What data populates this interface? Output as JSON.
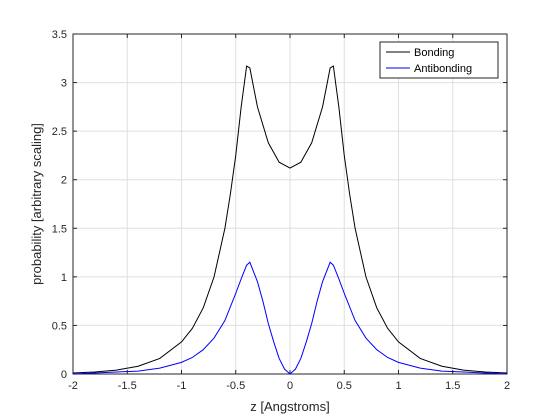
{
  "chart_data": {
    "type": "line",
    "title": "",
    "xlabel": "z [Angstroms]",
    "ylabel": "probability [arbitrary scaling]",
    "xlim": [
      -2,
      2
    ],
    "ylim": [
      0,
      3.5
    ],
    "xticks": [
      -2,
      -1.5,
      -1,
      -0.5,
      0,
      0.5,
      1,
      1.5,
      2
    ],
    "xtick_labels": [
      "-2",
      "-1.5",
      "-1",
      "-0.5",
      "0",
      "0.5",
      "1",
      "1.5",
      "2"
    ],
    "yticks": [
      0,
      0.5,
      1,
      1.5,
      2,
      2.5,
      3,
      3.5
    ],
    "ytick_labels": [
      "0",
      "0.5",
      "1",
      "1.5",
      "2",
      "2.5",
      "3",
      "3.5"
    ],
    "grid": true,
    "legend_position": "top-right",
    "series": [
      {
        "name": "Bonding",
        "color": "#000000",
        "x": [
          -2,
          -1.8,
          -1.6,
          -1.4,
          -1.2,
          -1.0,
          -0.9,
          -0.8,
          -0.7,
          -0.6,
          -0.55,
          -0.5,
          -0.45,
          -0.42,
          -0.4,
          -0.37,
          -0.3,
          -0.2,
          -0.1,
          0,
          0.1,
          0.2,
          0.3,
          0.37,
          0.4,
          0.42,
          0.45,
          0.5,
          0.55,
          0.6,
          0.7,
          0.8,
          0.9,
          1.0,
          1.2,
          1.4,
          1.6,
          1.8,
          2
        ],
        "y": [
          0.01,
          0.02,
          0.04,
          0.08,
          0.16,
          0.33,
          0.47,
          0.68,
          1.0,
          1.5,
          1.85,
          2.25,
          2.75,
          3.0,
          3.17,
          3.15,
          2.75,
          2.38,
          2.18,
          2.12,
          2.18,
          2.38,
          2.75,
          3.15,
          3.17,
          3.0,
          2.75,
          2.25,
          1.85,
          1.5,
          1.0,
          0.68,
          0.47,
          0.33,
          0.16,
          0.08,
          0.04,
          0.02,
          0.01
        ]
      },
      {
        "name": "Antibonding",
        "color": "#0000ff",
        "x": [
          -2,
          -1.8,
          -1.6,
          -1.4,
          -1.2,
          -1.0,
          -0.9,
          -0.8,
          -0.7,
          -0.6,
          -0.5,
          -0.45,
          -0.4,
          -0.37,
          -0.3,
          -0.25,
          -0.2,
          -0.15,
          -0.1,
          -0.05,
          0,
          0.05,
          0.1,
          0.15,
          0.2,
          0.25,
          0.3,
          0.37,
          0.4,
          0.45,
          0.5,
          0.6,
          0.7,
          0.8,
          0.9,
          1.0,
          1.2,
          1.4,
          1.6,
          1.8,
          2
        ],
        "y": [
          0.0,
          0.01,
          0.02,
          0.03,
          0.06,
          0.12,
          0.17,
          0.25,
          0.37,
          0.55,
          0.83,
          0.98,
          1.12,
          1.15,
          0.95,
          0.75,
          0.52,
          0.33,
          0.16,
          0.05,
          0.0,
          0.05,
          0.16,
          0.33,
          0.52,
          0.75,
          0.95,
          1.15,
          1.12,
          0.98,
          0.83,
          0.55,
          0.37,
          0.25,
          0.17,
          0.12,
          0.06,
          0.03,
          0.02,
          0.01,
          0.0
        ]
      }
    ]
  }
}
